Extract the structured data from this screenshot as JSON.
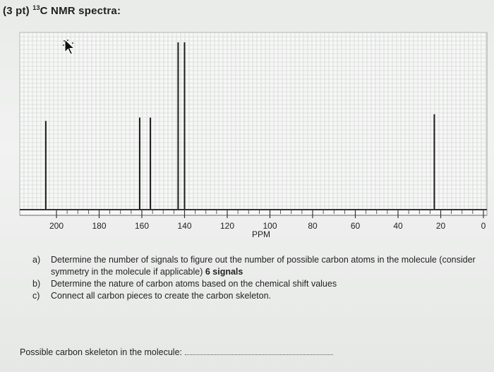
{
  "header": {
    "prefix": "(3 pt)",
    "sup": "13",
    "title": "C NMR spectra:"
  },
  "chart_data": {
    "type": "bar",
    "title": "",
    "xlabel": "PPM",
    "ylabel": "",
    "xlim": [
      200,
      0
    ],
    "x_ticks": [
      200,
      180,
      160,
      140,
      120,
      100,
      80,
      60,
      40,
      20,
      0
    ],
    "grid": true,
    "peaks": [
      {
        "ppm": 205,
        "height": 0.53
      },
      {
        "ppm": 161,
        "height": 0.55
      },
      {
        "ppm": 156,
        "height": 0.55
      },
      {
        "ppm": 143,
        "height": 1.0
      },
      {
        "ppm": 140,
        "height": 1.0
      },
      {
        "ppm": 23,
        "height": 0.57
      }
    ]
  },
  "questions": [
    {
      "letter": "a)",
      "text": "Determine the number of signals to figure out the number of possible carbon atoms in the molecule (consider symmetry in the molecule if applicable)",
      "answer": "6 signals"
    },
    {
      "letter": "b)",
      "text": "Determine the nature of carbon atoms based on the chemical shift values",
      "answer": ""
    },
    {
      "letter": "c)",
      "text": "Connect all carbon pieces to create the carbon skeleton.",
      "answer": ""
    }
  ],
  "footer": {
    "label": "Possible carbon skeleton in the molecule:"
  }
}
